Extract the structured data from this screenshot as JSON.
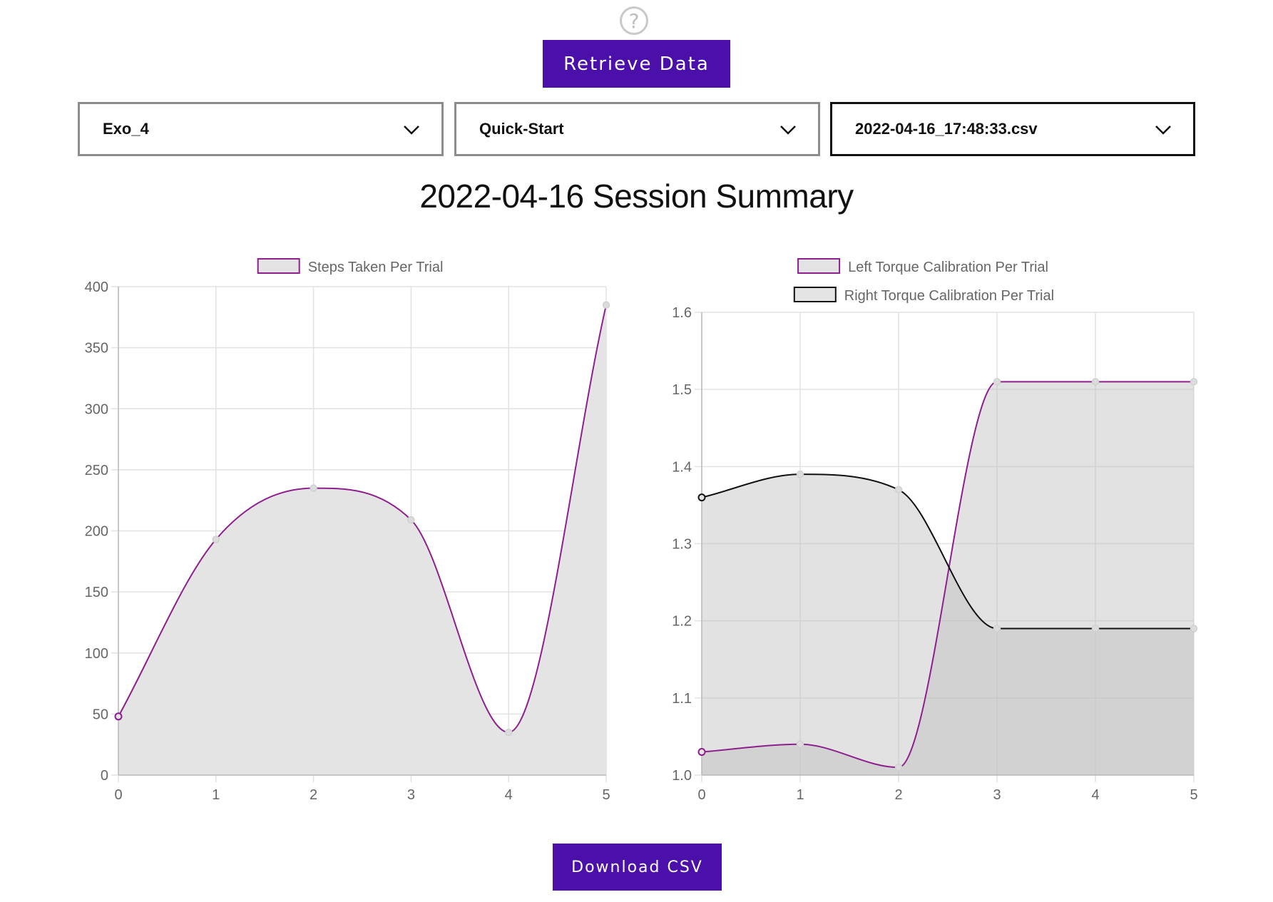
{
  "help": {
    "icon": "question-circle-icon",
    "symbol": "?"
  },
  "toolbar": {
    "retrieve_label": "Retrieve Data"
  },
  "selects": [
    {
      "value": "Exo_4",
      "icon": "chevron-down-icon"
    },
    {
      "value": "Quick-Start",
      "icon": "chevron-down-icon"
    },
    {
      "value": "2022-04-16_17:48:33.csv",
      "icon": "chevron-down-icon"
    }
  ],
  "page_title": "2022-04-16 Session Summary",
  "footer": {
    "download_label": "Download CSV"
  },
  "colors": {
    "accent": "#4b0faa",
    "purple_line": "#8e1f8e",
    "black_line": "#111111",
    "fill": "#e4e4e4",
    "fill_dark": "#cccccc"
  },
  "chart_data": [
    {
      "type": "line",
      "x": [
        0,
        1,
        2,
        3,
        4,
        5
      ],
      "series": [
        {
          "name": "Steps Taken Per Trial",
          "values": [
            48,
            193,
            235,
            209,
            35,
            385
          ]
        }
      ],
      "xlabel": "",
      "ylabel": "",
      "ylim": [
        0,
        400
      ],
      "yticks": [
        0,
        50,
        100,
        150,
        200,
        250,
        300,
        350,
        400
      ],
      "xticks": [
        0,
        1,
        2,
        3,
        4,
        5
      ],
      "grid": true,
      "legend": "top-center",
      "fill": true
    },
    {
      "type": "line",
      "x": [
        0,
        1,
        2,
        3,
        4,
        5
      ],
      "series": [
        {
          "name": "Left Torque Calibration Per Trial",
          "values": [
            1.03,
            1.04,
            1.01,
            1.51,
            1.51,
            1.51
          ]
        },
        {
          "name": "Right Torque Calibration Per Trial",
          "values": [
            1.36,
            1.39,
            1.37,
            1.19,
            1.19,
            1.19
          ]
        }
      ],
      "xlabel": "",
      "ylabel": "",
      "ylim": [
        1.0,
        1.6
      ],
      "yticks": [
        "1.0",
        "1.1",
        "1.2",
        "1.3",
        "1.4",
        "1.5",
        "1.6"
      ],
      "xticks": [
        0,
        1,
        2,
        3,
        4,
        5
      ],
      "grid": true,
      "legend": "top-center",
      "fill": true
    }
  ]
}
